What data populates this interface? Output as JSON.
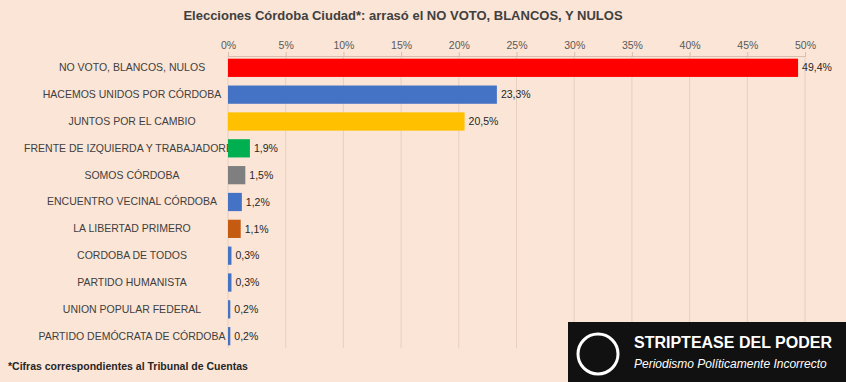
{
  "chart_data": {
    "type": "bar",
    "orientation": "horizontal",
    "title": "Elecciones Córdoba Ciudad*: arrasó el NO VOTO, BLANCOS, Y NULOS",
    "footnote": "*Cifras correspondientes al Tribunal de Cuentas",
    "annotations": [
      "STRIPTEASE DEL PODER",
      "Periodismo Políticamente Incorrecto"
    ],
    "categories": [
      "NO VOTO, BLANCOS, NULOS",
      "HACEMOS UNIDOS POR CÓRDOBA",
      "JUNTOS POR EL CAMBIO",
      "FRENTE DE IZQUIERDA Y TRABAJADORES",
      "SOMOS CÓRDOBA",
      "ENCUENTRO VECINAL CÓRDOBA",
      "LA LIBERTAD PRIMERO",
      "CORDOBA DE TODOS",
      "PARTIDO HUMANISTA",
      "UNION POPULAR FEDERAL",
      "PARTIDO DEMÓCRATA DE CÓRDOBA"
    ],
    "values": [
      49.4,
      23.3,
      20.5,
      1.9,
      1.5,
      1.2,
      1.1,
      0.3,
      0.3,
      0.2,
      0.2
    ],
    "value_labels": [
      "49,4%",
      "23,3%",
      "20,5%",
      "1,9%",
      "1,5%",
      "1,2%",
      "1,1%",
      "0,3%",
      "0,3%",
      "0,2%",
      "0,2%"
    ],
    "colors": [
      "#ff0000",
      "#4472c4",
      "#ffc000",
      "#00b050",
      "#7f7f7f",
      "#4472c4",
      "#c55a11",
      "#4472c4",
      "#4472c4",
      "#4472c4",
      "#4472c4"
    ],
    "xlim": [
      0,
      50
    ],
    "xticks": [
      {
        "value": 0,
        "label": "0%"
      },
      {
        "value": 5,
        "label": "5%"
      },
      {
        "value": 10,
        "label": "10%"
      },
      {
        "value": 15,
        "label": "15%"
      },
      {
        "value": 20,
        "label": "20%"
      },
      {
        "value": 25,
        "label": "25%"
      },
      {
        "value": 30,
        "label": "30%"
      },
      {
        "value": 35,
        "label": "35%"
      },
      {
        "value": 40,
        "label": "40%"
      },
      {
        "value": 45,
        "label": "45%"
      },
      {
        "value": 50,
        "label": "50%"
      }
    ],
    "grid": true,
    "data_labels": true
  }
}
